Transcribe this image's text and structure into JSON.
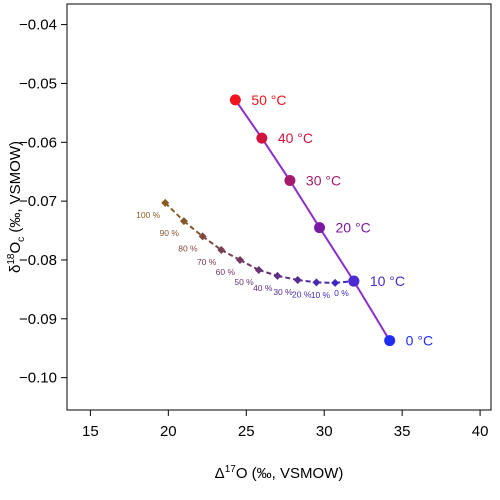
{
  "chart_data": {
    "type": "scatter",
    "title": "",
    "xlabel": {
      "prefix": "Δ",
      "sup": "17",
      "suffix": "O (‰, VSMOW)"
    },
    "ylabel": {
      "prefix": "δ",
      "sup": "18",
      "mid": "O",
      "sub": "c",
      "suffix": " (‰, VSMOW)"
    },
    "xlim": [
      13.5,
      40.7
    ],
    "ylim": [
      -0.1055,
      -0.0365
    ],
    "x_ticks": [
      15,
      20,
      25,
      30,
      35,
      40
    ],
    "y_ticks": [
      -0.1,
      -0.09,
      -0.08,
      -0.07,
      -0.06,
      -0.05,
      -0.04
    ],
    "y_tick_labels": [
      "−0.10",
      "−0.09",
      "−0.08",
      "−0.07",
      "−0.06",
      "−0.05",
      "−0.04"
    ],
    "grid": false,
    "legend": "none",
    "series": [
      {
        "line_color": "#8e2ec9",
        "line_style": "solid",
        "marker": "circle",
        "points": [
          {
            "x": 24.3,
            "y": -0.0528,
            "label": "50 °C",
            "color": "#f0141e"
          },
          {
            "x": 26.0,
            "y": -0.0593,
            "label": "40 °C",
            "color": "#d1143e"
          },
          {
            "x": 27.8,
            "y": -0.0665,
            "label": "30 °C",
            "color": "#a41b6c"
          },
          {
            "x": 29.7,
            "y": -0.0745,
            "label": "20 °C",
            "color": "#7a1aa3"
          },
          {
            "x": 31.9,
            "y": -0.0836,
            "label": "10 °C",
            "color": "#4b2ad0"
          },
          {
            "x": 34.2,
            "y": -0.0937,
            "label": "0 °C",
            "color": "#1f2ef0"
          }
        ]
      },
      {
        "line_color": "#8a5a24",
        "line_style": "dashed",
        "marker": "diamond",
        "points": [
          {
            "x": 19.8,
            "y": -0.0703,
            "label": "100 %",
            "color": "#8a5a22"
          },
          {
            "x": 21.0,
            "y": -0.0734,
            "label": "90 %",
            "color": "#84562e"
          },
          {
            "x": 22.2,
            "y": -0.076,
            "label": "80 %",
            "color": "#7f4a40"
          },
          {
            "x": 23.4,
            "y": -0.0783,
            "label": "70 %",
            "color": "#7a4052"
          },
          {
            "x": 24.6,
            "y": -0.08,
            "label": "60 %",
            "color": "#723862"
          },
          {
            "x": 25.8,
            "y": -0.0817,
            "label": "50 %",
            "color": "#693474"
          },
          {
            "x": 27.0,
            "y": -0.0827,
            "label": "40 %",
            "color": "#5f2f86"
          },
          {
            "x": 28.3,
            "y": -0.0834,
            "label": "30 %",
            "color": "#542c96"
          },
          {
            "x": 29.5,
            "y": -0.0838,
            "label": "20 %",
            "color": "#4a2aa8"
          },
          {
            "x": 30.7,
            "y": -0.0839,
            "label": "10 %",
            "color": "#4028b8"
          },
          {
            "x": 31.9,
            "y": -0.0836,
            "label": "0 %",
            "color": "#3a28c4"
          }
        ]
      }
    ]
  }
}
